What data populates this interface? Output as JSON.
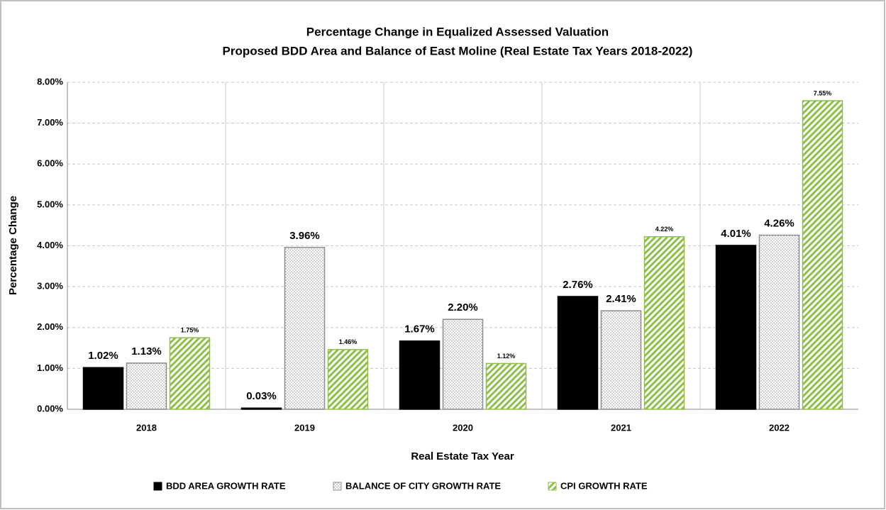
{
  "chart_data": {
    "type": "bar",
    "title": "Percentage Change in Equalized Assessed Valuation",
    "subtitle": "Proposed BDD Area and Balance of East Moline (Real Estate Tax Years 2018-2022)",
    "x_label": "Real Estate Tax Year",
    "y_label": "Percentage Change",
    "categories": [
      "2018",
      "2019",
      "2020",
      "2021",
      "2022"
    ],
    "series": [
      {
        "name": "BDD AREA GROWTH RATE",
        "color": "#000000",
        "pattern": "solid",
        "values": [
          1.02,
          0.03,
          1.67,
          2.76,
          4.01
        ],
        "value_labels": [
          "1.02%",
          "0.03%",
          "1.67%",
          "2.76%",
          "4.01%"
        ]
      },
      {
        "name": "BALANCE OF CITY GROWTH RATE",
        "color": "#8c8c8c",
        "pattern": "dots",
        "values": [
          1.13,
          3.96,
          2.2,
          2.41,
          4.26
        ],
        "value_labels": [
          "1.13%",
          "3.96%",
          "2.20%",
          "2.41%",
          "4.26%"
        ]
      },
      {
        "name": "CPI GROWTH RATE",
        "color": "#8fbf4a",
        "pattern": "stripes",
        "values": [
          1.75,
          1.46,
          1.12,
          4.22,
          7.55
        ],
        "value_labels": [
          "1.75%",
          "1.46%",
          "1.12%",
          "4.22%",
          "7.55%"
        ]
      }
    ],
    "ylim": [
      0,
      8
    ],
    "yticks": [
      {
        "value": 0,
        "label": "0.00%"
      },
      {
        "value": 1,
        "label": "1.00%"
      },
      {
        "value": 2,
        "label": "2.00%"
      },
      {
        "value": 3,
        "label": "3.00%"
      },
      {
        "value": 4,
        "label": "4.00%"
      },
      {
        "value": 5,
        "label": "5.00%"
      },
      {
        "value": 6,
        "label": "6.00%"
      },
      {
        "value": 7,
        "label": "7.00%"
      },
      {
        "value": 8,
        "label": "8.00%"
      }
    ],
    "grid": true,
    "legend": "bottom"
  }
}
